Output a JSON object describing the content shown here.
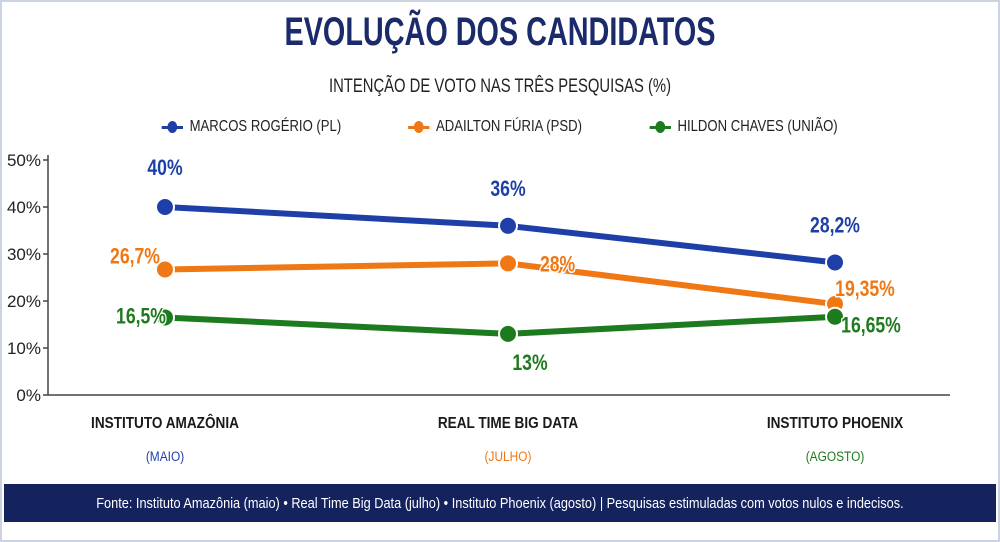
{
  "chart_data": {
    "type": "line",
    "title": "EVOLUÇÃO DOS CANDIDATOS",
    "subtitle": "INTENÇÃO DE VOTO NAS TRÊS PESQUISAS (%)",
    "categories": [
      {
        "name": "INSTITUTO AMAZÔNIA",
        "period": "(MAIO)",
        "period_color": "#1f3fa8"
      },
      {
        "name": "REAL TIME BIG DATA",
        "period": "(JULHO)",
        "period_color": "#f07814"
      },
      {
        "name": "INSTITUTO PHOENIX",
        "period": "(AGOSTO)",
        "period_color": "#1e7a1e"
      }
    ],
    "yticks": [
      "0%",
      "10%",
      "20%",
      "30%",
      "40%",
      "50%"
    ],
    "ylim": [
      0,
      50
    ],
    "grid": false,
    "legend_position": "top",
    "series": [
      {
        "name": "MARCOS ROGÉRIO (PL)",
        "color": "#1f3fa8",
        "values": [
          40,
          36,
          28.2
        ],
        "labels": [
          "40%",
          "36%",
          "28,2%"
        ]
      },
      {
        "name": "ADAILTON FÚRIA (PSD)",
        "color": "#f07814",
        "values": [
          26.7,
          28,
          19.35
        ],
        "labels": [
          "26,7%",
          "28%",
          "19,35%"
        ]
      },
      {
        "name": "HILDON CHAVES (UNIÃO)",
        "color": "#1e7a1e",
        "values": [
          16.5,
          13,
          16.65
        ],
        "labels": [
          "16,5%",
          "13%",
          "16,65%"
        ]
      }
    ]
  },
  "footer": "Fonte: Instituto Amazônia (maio)  •  Real Time Big Data (julho)  •  Instituto Phoenix (agosto) | Pesquisas estimuladas com votos nulos e indecisos."
}
